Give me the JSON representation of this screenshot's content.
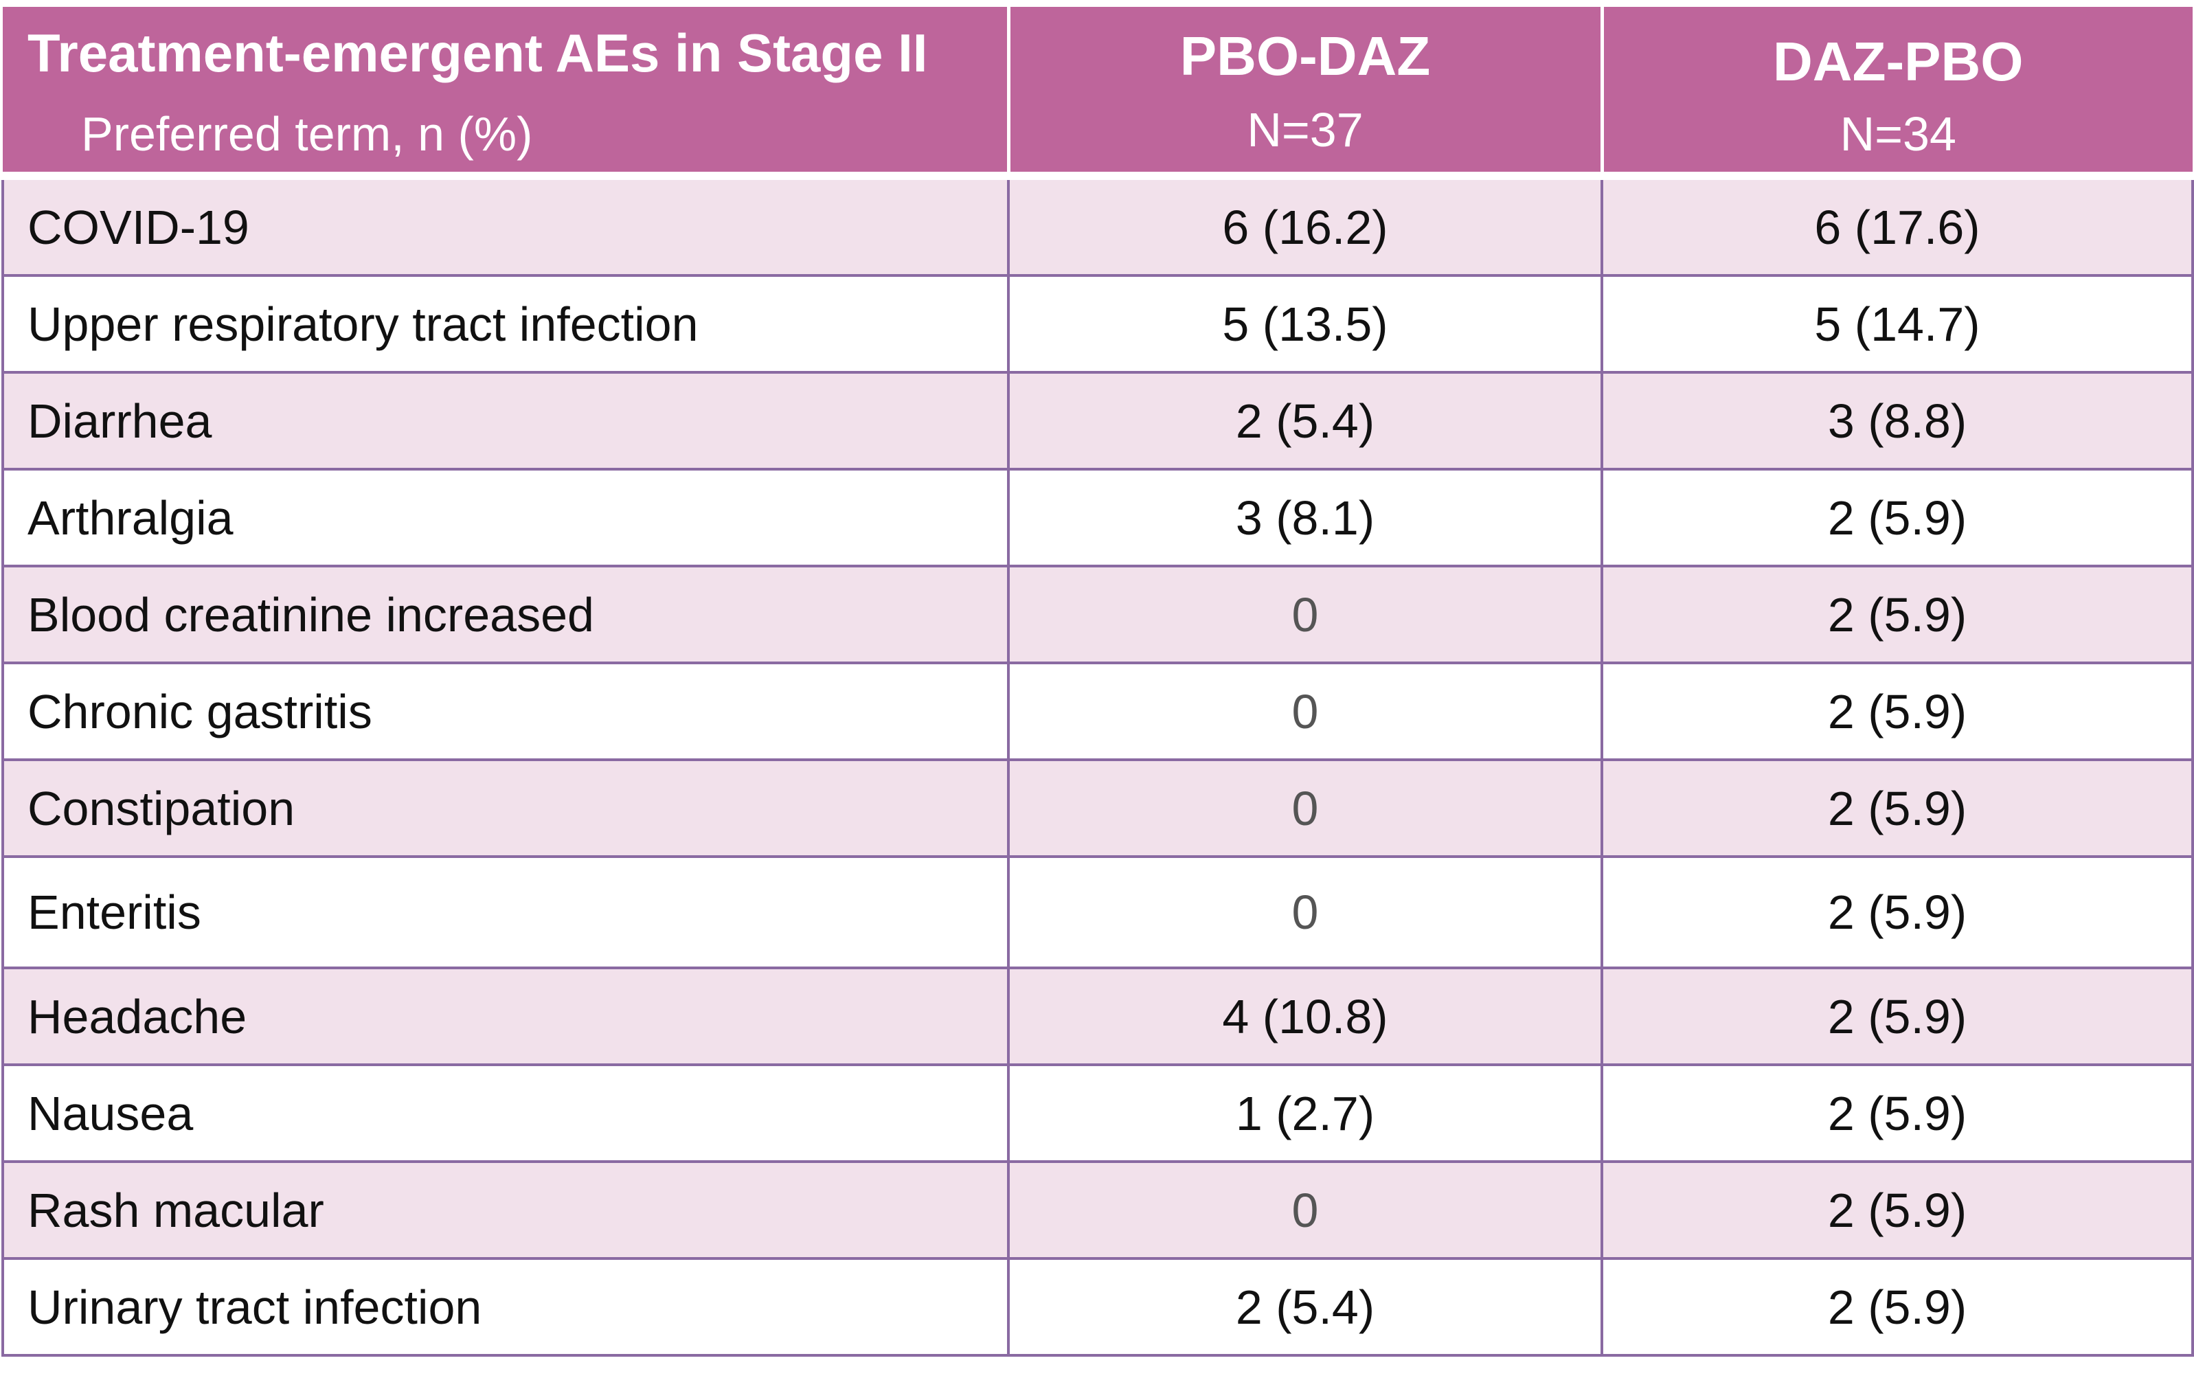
{
  "table": {
    "headers": [
      {
        "main": "Treatment-emergent AEs in Stage II",
        "sub": "Preferred term, n (%)"
      },
      {
        "main": "PBO-DAZ",
        "sub": "N=37"
      },
      {
        "main": "DAZ-PBO",
        "sub": "N=34"
      }
    ],
    "rows": [
      {
        "term": "COVID-19",
        "pbo_daz": "6  (16.2)",
        "daz_pbo": "6 (17.6)"
      },
      {
        "term": "Upper respiratory tract infection",
        "pbo_daz": "5 (13.5)",
        "daz_pbo": "5 (14.7)"
      },
      {
        "term": "Diarrhea",
        "pbo_daz": "2 (5.4)",
        "daz_pbo": "3 (8.8)"
      },
      {
        "term": "Arthralgia",
        "pbo_daz": "3 (8.1)",
        "daz_pbo": "2 (5.9)"
      },
      {
        "term": "Blood creatinine increased",
        "pbo_daz": "0",
        "daz_pbo": "2 (5.9)"
      },
      {
        "term": "Chronic gastritis",
        "pbo_daz": "0",
        "daz_pbo": "2 (5.9)"
      },
      {
        "term": "Constipation",
        "pbo_daz": "0",
        "daz_pbo": "2 (5.9)"
      },
      {
        "term": "Enteritis",
        "pbo_daz": "0",
        "daz_pbo": "2 (5.9)"
      },
      {
        "term": "Headache",
        "pbo_daz": "4 (10.8)",
        "daz_pbo": "2 (5.9)"
      },
      {
        "term": "Nausea",
        "pbo_daz": "1 (2.7)",
        "daz_pbo": "2 (5.9)"
      },
      {
        "term": "Rash macular",
        "pbo_daz": "0",
        "daz_pbo": "2 (5.9)"
      },
      {
        "term": "Urinary tract infection",
        "pbo_daz": "2 (5.4)",
        "daz_pbo": "2 (5.9)"
      }
    ]
  },
  "colors": {
    "header_bg": "#be659b",
    "row_shade": "#f2e1eb",
    "grid_line": "#8a6aa2"
  }
}
